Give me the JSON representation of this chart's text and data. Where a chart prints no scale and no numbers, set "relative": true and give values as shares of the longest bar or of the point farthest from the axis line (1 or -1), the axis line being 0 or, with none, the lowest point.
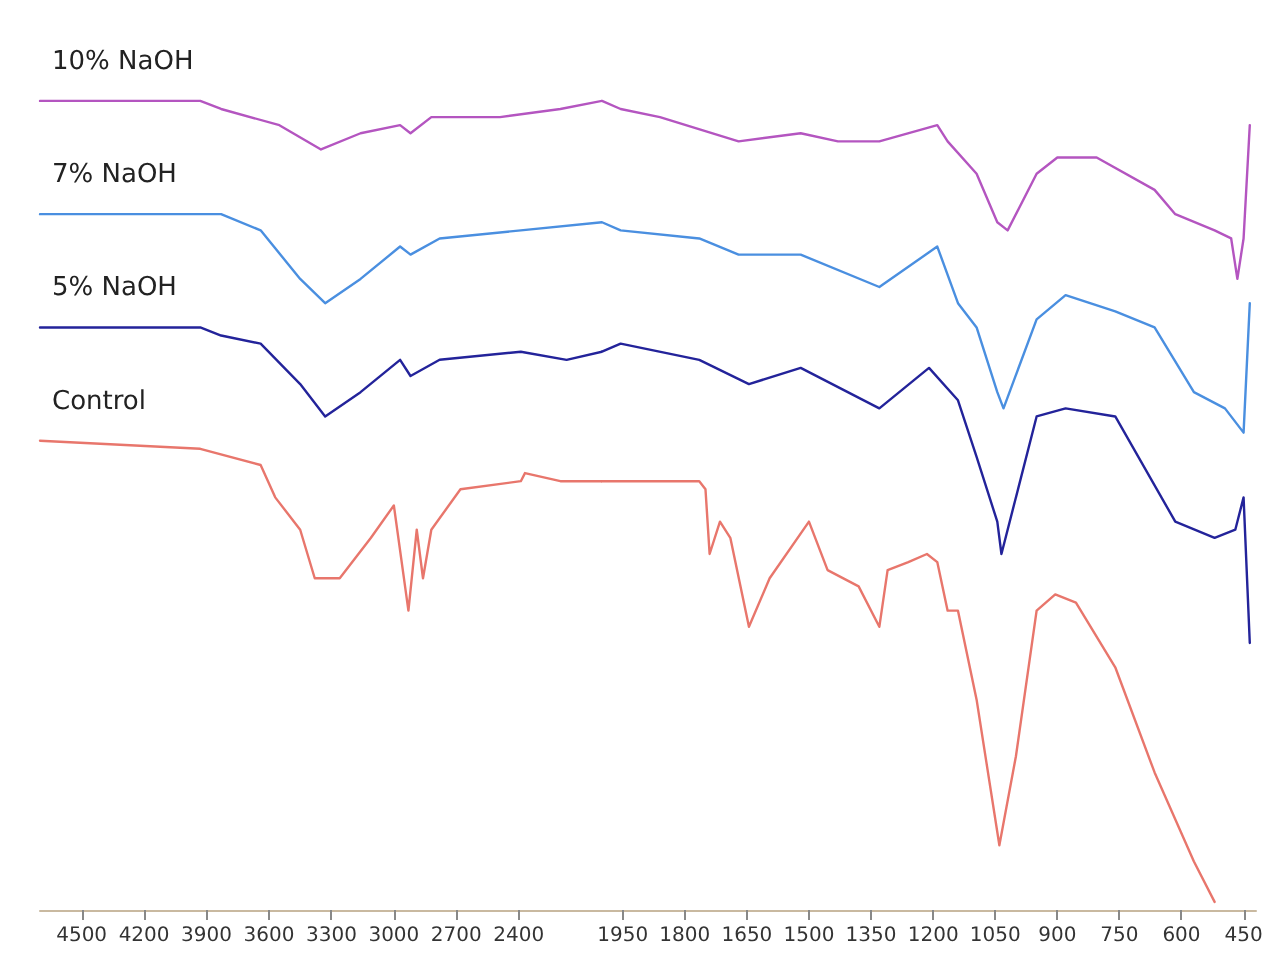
{
  "chart_data": [
    {
      "type": "line",
      "relative": true,
      "legend": false,
      "grid": false,
      "tick_labels": "x",
      "marker": "none",
      "xlim": [
        4700,
        2000
      ],
      "xticks": [
        4500,
        4200,
        3900,
        3600,
        3300,
        3000,
        2700,
        2400
      ],
      "series": [
        {
          "name": "10% NaOH",
          "color": "#b455c0",
          "x": [
            4700,
            3930,
            3830,
            3550,
            3350,
            3160,
            2970,
            2920,
            2820,
            2490,
            2200,
            2000
          ],
          "values": [
            1.0,
            1.0,
            0.99,
            0.97,
            0.94,
            0.96,
            0.97,
            0.96,
            0.98,
            0.98,
            0.99,
            1.0
          ]
        },
        {
          "name": "7% NaOH",
          "color": "#4a8fe0",
          "x": [
            4700,
            3830,
            3640,
            3450,
            3330,
            3160,
            2970,
            2920,
            2780,
            2390,
            2000
          ],
          "values": [
            0.86,
            0.86,
            0.84,
            0.78,
            0.75,
            0.78,
            0.82,
            0.81,
            0.83,
            0.84,
            0.85
          ]
        },
        {
          "name": "5% NaOH",
          "color": "#23239a",
          "x": [
            4700,
            3930,
            3830,
            3640,
            3450,
            3330,
            3160,
            2970,
            2920,
            2780,
            2390,
            2170,
            2000
          ],
          "values": [
            0.72,
            0.72,
            0.71,
            0.7,
            0.65,
            0.61,
            0.64,
            0.68,
            0.66,
            0.68,
            0.69,
            0.68,
            0.69
          ]
        },
        {
          "name": "Control",
          "color": "#e8766c",
          "x": [
            4700,
            3930,
            3640,
            3570,
            3450,
            3380,
            3260,
            3110,
            3000,
            2930,
            2890,
            2860,
            2820,
            2680,
            2390,
            2370,
            2200,
            2000
          ],
          "values": [
            0.58,
            0.57,
            0.55,
            0.51,
            0.47,
            0.41,
            0.41,
            0.46,
            0.5,
            0.37,
            0.47,
            0.41,
            0.47,
            0.52,
            0.53,
            0.54,
            0.53,
            0.53
          ]
        }
      ]
    },
    {
      "type": "line",
      "relative": true,
      "legend": false,
      "grid": false,
      "tick_labels": "x",
      "marker": "none",
      "xlim": [
        2000,
        420
      ],
      "xticks": [
        1950,
        1800,
        1650,
        1500,
        1350,
        1200,
        1050,
        900,
        750,
        600,
        450
      ],
      "series": [
        {
          "color": "#b455c0",
          "x": [
            2000,
            1955,
            1860,
            1670,
            1520,
            1430,
            1330,
            1190,
            1165,
            1095,
            1045,
            1020,
            950,
            900,
            805,
            665,
            615,
            520,
            480,
            465,
            450,
            435
          ],
          "values": [
            1.0,
            0.99,
            0.98,
            0.95,
            0.96,
            0.95,
            0.95,
            0.97,
            0.95,
            0.91,
            0.85,
            0.84,
            0.91,
            0.93,
            0.93,
            0.89,
            0.86,
            0.84,
            0.83,
            0.78,
            0.83,
            0.97
          ]
        },
        {
          "color": "#4a8fe0",
          "x": [
            2000,
            1955,
            1765,
            1670,
            1520,
            1330,
            1190,
            1140,
            1095,
            1045,
            1030,
            950,
            880,
            760,
            665,
            570,
            495,
            450,
            435
          ],
          "values": [
            0.85,
            0.84,
            0.83,
            0.81,
            0.81,
            0.77,
            0.82,
            0.75,
            0.72,
            0.64,
            0.62,
            0.73,
            0.76,
            0.74,
            0.72,
            0.64,
            0.62,
            0.59,
            0.75
          ]
        },
        {
          "color": "#23239a",
          "x": [
            2000,
            1955,
            1765,
            1645,
            1520,
            1330,
            1210,
            1140,
            1095,
            1045,
            1035,
            950,
            880,
            760,
            615,
            520,
            470,
            450,
            435
          ],
          "values": [
            0.69,
            0.7,
            0.68,
            0.65,
            0.67,
            0.62,
            0.67,
            0.63,
            0.56,
            0.48,
            0.44,
            0.61,
            0.62,
            0.61,
            0.48,
            0.46,
            0.47,
            0.51,
            0.33
          ]
        },
        {
          "color": "#e8766c",
          "x": [
            2000,
            1955,
            1765,
            1750,
            1740,
            1715,
            1690,
            1645,
            1595,
            1500,
            1455,
            1380,
            1330,
            1310,
            1260,
            1215,
            1190,
            1165,
            1140,
            1095,
            1040,
            1000,
            950,
            905,
            855,
            760,
            665,
            570,
            520
          ],
          "values": [
            0.53,
            0.53,
            0.53,
            0.52,
            0.44,
            0.48,
            0.46,
            0.35,
            0.41,
            0.48,
            0.42,
            0.4,
            0.35,
            0.42,
            0.43,
            0.44,
            0.43,
            0.37,
            0.37,
            0.26,
            0.08,
            0.19,
            0.37,
            0.39,
            0.38,
            0.3,
            0.17,
            0.06,
            0.01
          ]
        }
      ]
    }
  ]
}
